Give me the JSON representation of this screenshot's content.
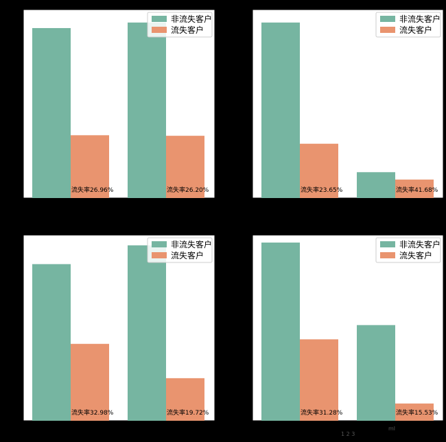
{
  "colors": {
    "figure_background": "#000000",
    "non_churn": "#76b5a1",
    "churn": "#e9946f"
  },
  "legend": {
    "entries": [
      "非流失客户",
      "流失客户"
    ]
  },
  "chart_data": [
    {
      "type": "bar",
      "title": "",
      "xlabel": "",
      "ylabel": "",
      "legend_position": "top-right",
      "categories": [
        "",
        ""
      ],
      "series": [
        {
          "name": "非流失客户",
          "values": [
            92,
            95
          ]
        },
        {
          "name": "流失客户",
          "values": [
            34,
            33.7
          ]
        }
      ],
      "ylim": [
        0,
        102
      ],
      "annotations": [
        "流失率26.96%",
        "流失率26.20%"
      ]
    },
    {
      "type": "bar",
      "title": "",
      "xlabel": "",
      "ylabel": "",
      "legend_position": "top-right",
      "categories": [
        "",
        ""
      ],
      "series": [
        {
          "name": "非流失客户",
          "values": [
            95,
            14
          ]
        },
        {
          "name": "流失客户",
          "values": [
            29.4,
            10
          ]
        }
      ],
      "ylim": [
        0,
        102
      ],
      "annotations": [
        "流失率23.65%",
        "流失率41.68%"
      ]
    },
    {
      "type": "bar",
      "title": "",
      "xlabel": "",
      "ylabel": "",
      "legend_position": "top-right",
      "categories": [
        "",
        ""
      ],
      "series": [
        {
          "name": "非流失客户",
          "values": [
            83.5,
            93.5
          ]
        },
        {
          "name": "流失客户",
          "values": [
            41,
            22.7
          ]
        }
      ],
      "ylim": [
        0,
        99
      ],
      "annotations": [
        "流失率32.98%",
        "流失率19.72%"
      ]
    },
    {
      "type": "bar",
      "title": "",
      "xlabel": "",
      "ylabel": "",
      "legend_position": "top-right",
      "categories": [
        "",
        ""
      ],
      "series": [
        {
          "name": "非流失客户",
          "values": [
            95,
            51
          ]
        },
        {
          "name": "流失客户",
          "values": [
            43.4,
            9.2
          ]
        }
      ],
      "ylim": [
        0,
        99
      ],
      "annotations": [
        "流失率31.28%",
        "流失率15.53%"
      ]
    }
  ],
  "stray_text": [
    "1 2 3",
    "ml"
  ]
}
